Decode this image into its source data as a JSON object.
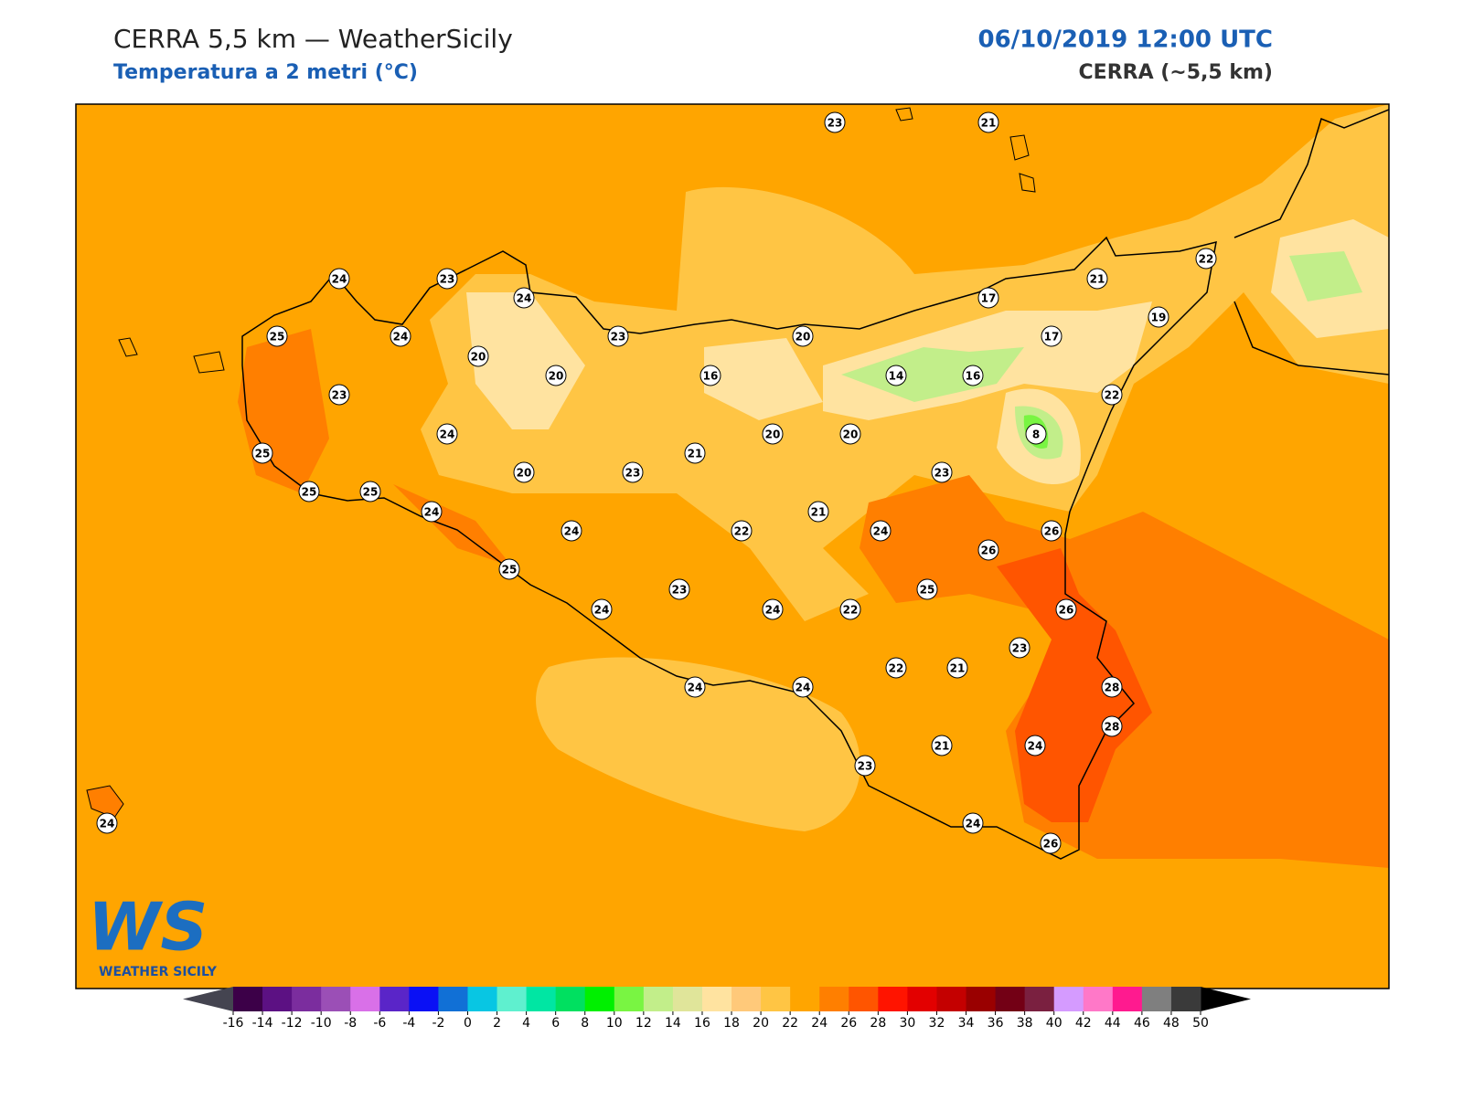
{
  "header": {
    "title": "CERRA 5,5 km — WeatherSicily",
    "subtitle": "Temperatura a 2 metri (°C)",
    "date": "06/10/2019 12:00 UTC",
    "model": "CERRA (~5,5 km)"
  },
  "logo": {
    "mark": "WS",
    "text": "WEATHER SICILY"
  },
  "stations": [
    23,
    21,
    24,
    23,
    24,
    25,
    24,
    23,
    20,
    17,
    21,
    22,
    19,
    17,
    20,
    20,
    16,
    14,
    16,
    22,
    23,
    24,
    20,
    20,
    8,
    21,
    25,
    25,
    25,
    20,
    23,
    23,
    24,
    24,
    21,
    22,
    24,
    26,
    26,
    25,
    25,
    23,
    24,
    24,
    22,
    26,
    23,
    22,
    21,
    24,
    24,
    28,
    28,
    21,
    24,
    23,
    24,
    26,
    24
  ],
  "colorbar": {
    "ticks": [
      -16,
      -14,
      -12,
      -10,
      -8,
      -6,
      -4,
      -2,
      0,
      2,
      4,
      6,
      8,
      10,
      12,
      14,
      16,
      18,
      20,
      22,
      24,
      26,
      28,
      30,
      32,
      34,
      36,
      38,
      40,
      42,
      44,
      46,
      48,
      50
    ],
    "colors": [
      "#3c0048",
      "#5c1183",
      "#7b2d9e",
      "#9b4fb6",
      "#d970e8",
      "#5a25c8",
      "#0a10f5",
      "#1170d6",
      "#08c6e3",
      "#5ff0cf",
      "#00e6a3",
      "#00e060",
      "#00f000",
      "#79f542",
      "#c2ee8a",
      "#e0e59a",
      "#ffe3a0",
      "#ffc97a",
      "#ffc544",
      "#ffa500",
      "#ff7f00",
      "#ff5500",
      "#ff1400",
      "#e30000",
      "#c40000",
      "#9a0000",
      "#730015",
      "#7a2040",
      "#d59bff",
      "#ff78c8",
      "#ff1a8f",
      "#7f7f7f",
      "#3a3a3a"
    ],
    "under": "#444450",
    "over": "#000000"
  }
}
